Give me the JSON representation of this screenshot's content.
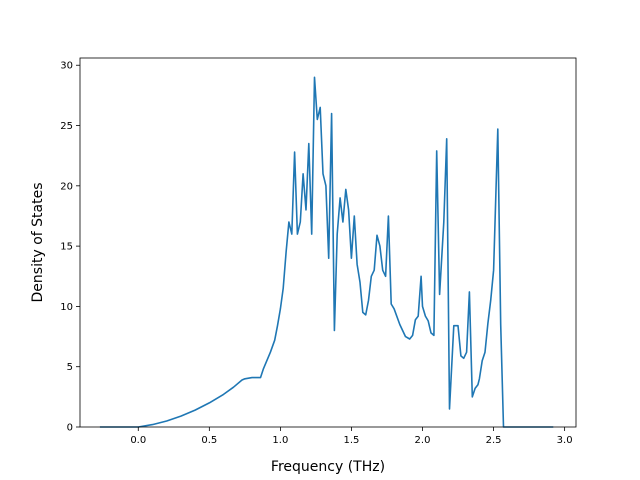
{
  "chart_data": {
    "type": "line",
    "title": "",
    "xlabel": "Frequency (THz)",
    "ylabel": "Density of States",
    "xlim": [
      -0.41,
      3.08
    ],
    "ylim": [
      0,
      30.6
    ],
    "xticks": [
      0.0,
      0.5,
      1.0,
      1.5,
      2.0,
      2.5,
      3.0
    ],
    "xtick_labels": [
      "0.0",
      "0.5",
      "1.0",
      "1.5",
      "2.0",
      "2.5",
      "3.0"
    ],
    "yticks": [
      0,
      5,
      10,
      15,
      20,
      25,
      30
    ],
    "ytick_labels": [
      "0",
      "5",
      "10",
      "15",
      "20",
      "25",
      "30"
    ],
    "grid": false,
    "color": "#1f77b4",
    "series": [
      {
        "x": [
          -0.27,
          0.0,
          0.1,
          0.2,
          0.3,
          0.4,
          0.5,
          0.6,
          0.67,
          0.73,
          0.75,
          0.8,
          0.86,
          0.88,
          0.93,
          0.96,
          0.98,
          1.0,
          1.02,
          1.04,
          1.06,
          1.08,
          1.1,
          1.12,
          1.14,
          1.16,
          1.18,
          1.2,
          1.22,
          1.24,
          1.26,
          1.28,
          1.3,
          1.32,
          1.34,
          1.36,
          1.38,
          1.4,
          1.42,
          1.44,
          1.46,
          1.48,
          1.5,
          1.52,
          1.54,
          1.56,
          1.58,
          1.6,
          1.62,
          1.64,
          1.66,
          1.68,
          1.7,
          1.72,
          1.74,
          1.76,
          1.78,
          1.8,
          1.84,
          1.88,
          1.91,
          1.93,
          1.95,
          1.97,
          1.99,
          2.0,
          2.02,
          2.04,
          2.06,
          2.08,
          2.1,
          2.12,
          2.15,
          2.17,
          2.19,
          2.22,
          2.25,
          2.27,
          2.29,
          2.31,
          2.33,
          2.35,
          2.37,
          2.39,
          2.4,
          2.42,
          2.44,
          2.46,
          2.48,
          2.5,
          2.53,
          2.55,
          2.57,
          2.59,
          2.61,
          2.63,
          2.64,
          2.66,
          2.8,
          2.92
        ],
        "y": [
          0,
          0,
          0.2,
          0.5,
          0.9,
          1.4,
          2.0,
          2.7,
          3.3,
          3.9,
          4.0,
          4.1,
          4.1,
          4.8,
          6.2,
          7.2,
          8.4,
          9.8,
          11.5,
          14.5,
          17.0,
          16.0,
          22.8,
          16.0,
          17.0,
          21.0,
          18.0,
          23.5,
          16.0,
          29.0,
          25.5,
          26.5,
          21.0,
          20.0,
          14.0,
          26.0,
          8.0,
          16.0,
          19.0,
          17.0,
          19.7,
          18.0,
          14.0,
          17.5,
          13.5,
          12.0,
          9.5,
          9.3,
          10.5,
          12.5,
          13.0,
          15.9,
          15.0,
          13.0,
          12.5,
          17.5,
          10.2,
          9.8,
          8.5,
          7.5,
          7.3,
          7.6,
          8.9,
          9.2,
          12.5,
          10.0,
          9.2,
          8.8,
          7.8,
          7.6,
          22.9,
          11.0,
          17.0,
          23.9,
          1.5,
          8.4,
          8.4,
          5.9,
          5.7,
          6.2,
          11.2,
          2.5,
          3.2,
          3.5,
          4.0,
          5.5,
          6.2,
          8.6,
          10.5,
          13.0,
          24.7,
          8.5,
          0,
          0,
          0,
          0,
          0,
          0,
          0,
          0
        ]
      }
    ]
  }
}
